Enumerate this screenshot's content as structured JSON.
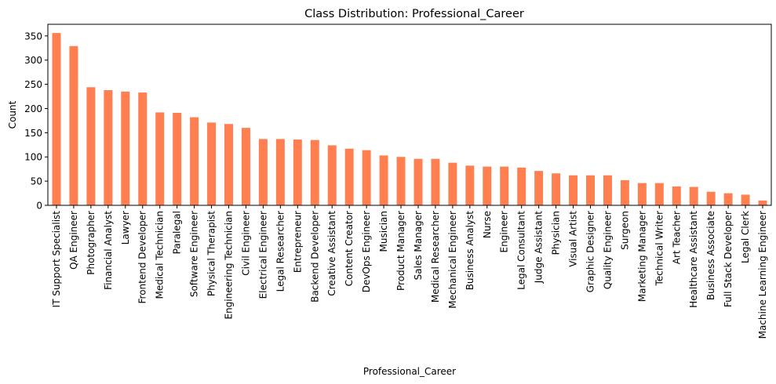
{
  "chart_data": {
    "type": "bar",
    "title": "Class Distribution: Professional_Career",
    "xlabel": "Professional_Career",
    "ylabel": "Count",
    "ylim": [
      0,
      374
    ],
    "yticks": [
      0,
      50,
      100,
      150,
      200,
      250,
      300,
      350
    ],
    "grid": false,
    "bar_color": "#FF7F50",
    "categories": [
      "IT Support Specialist",
      "QA Engineer",
      "Photographer",
      "Financial Analyst",
      "Lawyer",
      "Frontend Developer",
      "Medical Technician",
      "Paralegal",
      "Software Engineer",
      "Physical Therapist",
      "Engineering Technician",
      "Civil Engineer",
      "Electrical Engineer",
      "Legal Researcher",
      "Entrepreneur",
      "Backend Developer",
      "Creative Assistant",
      "Content Creator",
      "DevOps Engineer",
      "Musician",
      "Product Manager",
      "Sales Manager",
      "Medical Researcher",
      "Mechanical Engineer",
      "Business Analyst",
      "Nurse",
      "Engineer",
      "Legal Consultant",
      "Judge Assistant",
      "Physician",
      "Visual Artist",
      "Graphic Designer",
      "Quality Engineer",
      "Surgeon",
      "Marketing Manager",
      "Technical Writer",
      "Art Teacher",
      "Healthcare Assistant",
      "Business Associate",
      "Full Stack Developer",
      "Legal Clerk",
      "Machine Learning Engineer"
    ],
    "values": [
      356,
      329,
      244,
      238,
      235,
      233,
      192,
      191,
      182,
      171,
      168,
      160,
      137,
      137,
      136,
      135,
      124,
      117,
      114,
      103,
      100,
      96,
      96,
      88,
      82,
      80,
      80,
      78,
      71,
      66,
      62,
      62,
      62,
      52,
      46,
      46,
      39,
      38,
      28,
      25,
      22,
      10
    ]
  }
}
